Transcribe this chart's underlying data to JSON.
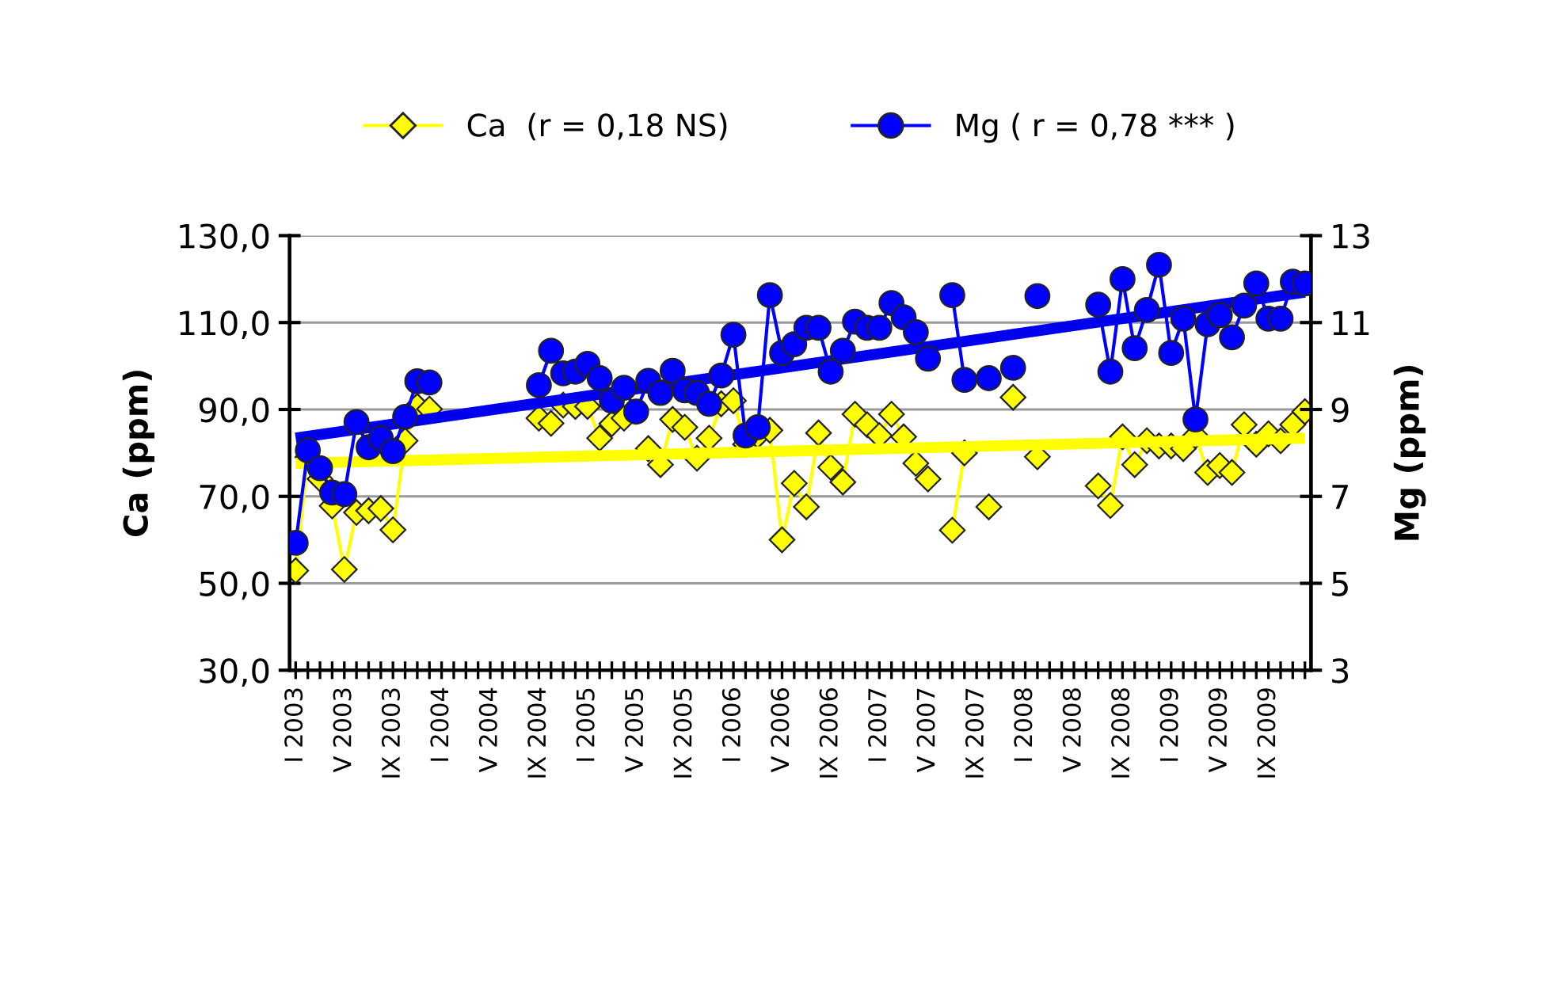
{
  "chart_data": {
    "type": "line",
    "categories": [
      "I 2003",
      null,
      null,
      null,
      "V 2003",
      null,
      null,
      null,
      "IX 2003",
      null,
      null,
      null,
      "I 2004",
      null,
      null,
      null,
      "V 2004",
      null,
      null,
      null,
      "IX 2004",
      null,
      null,
      null,
      "I 2005",
      null,
      null,
      null,
      "V 2005",
      null,
      null,
      null,
      "IX 2005",
      null,
      null,
      null,
      "I 2006",
      null,
      null,
      null,
      "V 2006",
      null,
      null,
      null,
      "IX 2006",
      null,
      null,
      null,
      "I 2007",
      null,
      null,
      null,
      "V 2007",
      null,
      null,
      null,
      "IX 2007",
      null,
      null,
      null,
      "I 2008",
      null,
      null,
      null,
      "V 2008",
      null,
      null,
      null,
      "IX 2008",
      null,
      null,
      null,
      "I 2009",
      null,
      null,
      null,
      "V 2009",
      null,
      null,
      null,
      "IX 2009",
      null,
      null,
      null
    ],
    "series": [
      {
        "name": "Ca  (r = 0,18 NS)",
        "color": "#ffff00",
        "marker": "diamond",
        "axis": "y",
        "values": [
          52.9,
          79,
          74,
          67.8,
          53.2,
          66.3,
          66.7,
          67.2,
          62.3,
          82.8,
          90.7,
          90.1,
          null,
          null,
          null,
          null,
          null,
          null,
          null,
          null,
          88.0,
          86.8,
          91,
          90.7,
          90.7,
          83.4,
          86.7,
          88.0,
          null,
          81.0,
          77.3,
          87.7,
          85.9,
          78.8,
          83.4,
          91.3,
          92,
          82,
          84,
          85.2,
          60.0,
          73.0,
          67.6,
          84.6,
          76.7,
          73.3,
          88.9,
          86.5,
          84.0,
          88.9,
          83.7,
          77.6,
          74.0,
          null,
          62.2,
          80.0,
          null,
          67.6,
          null,
          92.8,
          null,
          79.1,
          null,
          null,
          null,
          null,
          72.4,
          67.9,
          83.7,
          77.3,
          82.8,
          81.6,
          81.6,
          81.0,
          84.0,
          75.5,
          77.1,
          75.5,
          86.5,
          82.0,
          84.4,
          82.8,
          86.5,
          89.5
        ]
      },
      {
        "name": "Mg ( r = 0,78 *** )",
        "color": "#0000ff",
        "marker": "circle",
        "axis": "y2",
        "values": [
          5.93,
          8.06,
          7.65,
          7.09,
          7.05,
          8.71,
          8.13,
          8.34,
          8.04,
          8.83,
          9.65,
          9.62,
          null,
          null,
          null,
          null,
          null,
          null,
          null,
          null,
          9.56,
          10.35,
          9.83,
          9.87,
          10.05,
          9.72,
          9.2,
          9.5,
          8.95,
          9.66,
          9.38,
          9.89,
          9.44,
          9.38,
          9.13,
          9.78,
          10.72,
          8.4,
          8.59,
          11.63,
          10.3,
          10.5,
          10.88,
          10.88,
          9.87,
          10.35,
          11.02,
          10.88,
          10.88,
          11.45,
          11.12,
          10.78,
          10.17,
          null,
          11.63,
          9.68,
          null,
          9.72,
          null,
          9.96,
          null,
          11.61,
          null,
          null,
          null,
          null,
          11.41,
          9.87,
          12.0,
          10.41,
          11.29,
          12.33,
          10.3,
          11.09,
          8.77,
          10.96,
          11.17,
          10.66,
          11.39,
          11.9,
          11.09,
          11.09,
          11.94,
          11.9
        ]
      },
      {
        "type": "line",
        "color": "#ffff00",
        "marker": "none",
        "axis": "y",
        "values": [
          77.6,
          null,
          null,
          null,
          null,
          null,
          null,
          null,
          null,
          null,
          null,
          null,
          null,
          null,
          null,
          null,
          null,
          null,
          null,
          null,
          null,
          null,
          null,
          null,
          null,
          null,
          null,
          null,
          null,
          null,
          null,
          null,
          null,
          null,
          null,
          null,
          null,
          null,
          null,
          null,
          null,
          null,
          null,
          null,
          null,
          null,
          null,
          null,
          null,
          null,
          null,
          null,
          null,
          null,
          null,
          null,
          null,
          null,
          null,
          null,
          null,
          null,
          null,
          null,
          null,
          null,
          null,
          null,
          null,
          null,
          null,
          null,
          null,
          null,
          null,
          null,
          null,
          null,
          null,
          null,
          null,
          null,
          null,
          83.4
        ]
      },
      {
        "type": "line",
        "color": "#0000ee",
        "marker": "none",
        "axis": "y2",
        "values": [
          8.34,
          null,
          null,
          null,
          null,
          null,
          null,
          null,
          null,
          null,
          null,
          null,
          null,
          null,
          null,
          null,
          null,
          null,
          null,
          null,
          null,
          null,
          null,
          null,
          null,
          null,
          null,
          null,
          null,
          null,
          null,
          null,
          null,
          null,
          null,
          null,
          null,
          null,
          null,
          null,
          null,
          null,
          null,
          null,
          null,
          null,
          null,
          null,
          null,
          null,
          null,
          null,
          null,
          null,
          null,
          null,
          null,
          null,
          null,
          null,
          null,
          null,
          null,
          null,
          null,
          null,
          null,
          null,
          null,
          null,
          null,
          null,
          null,
          null,
          null,
          null,
          null,
          null,
          null,
          null,
          null,
          null,
          null,
          11.7
        ]
      }
    ],
    "ylabel": "Ca (ppm)",
    "y2label": "Mg (ppm)",
    "ylim": [
      30,
      130
    ],
    "yticks": [
      {
        "value": 30,
        "label": "30,0"
      },
      {
        "value": 50,
        "label": "50,0"
      },
      {
        "value": 70,
        "label": "70,0"
      },
      {
        "value": 90,
        "label": "90,0"
      },
      {
        "value": 110,
        "label": "110,0"
      },
      {
        "value": 130,
        "label": "130,0"
      }
    ],
    "y2lim": [
      3,
      13
    ],
    "y2ticks": [
      3,
      5,
      7,
      9,
      11,
      13
    ],
    "grid": "y",
    "legend": "top"
  }
}
